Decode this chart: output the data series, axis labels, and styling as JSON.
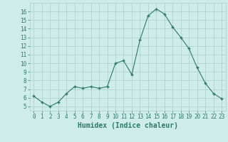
{
  "x": [
    0,
    1,
    2,
    3,
    4,
    5,
    6,
    7,
    8,
    9,
    10,
    11,
    12,
    13,
    14,
    15,
    16,
    17,
    18,
    19,
    20,
    21,
    22,
    23
  ],
  "y": [
    6.2,
    5.5,
    5.0,
    5.5,
    6.5,
    7.3,
    7.1,
    7.3,
    7.1,
    7.3,
    10.0,
    10.3,
    8.7,
    12.7,
    15.5,
    16.3,
    15.7,
    14.2,
    13.0,
    11.7,
    9.5,
    7.7,
    6.5,
    5.9
  ],
  "line_color": "#2d7a6a",
  "bg_color": "#cdecea",
  "grid_color": "#aacfcb",
  "xlabel": "Humidex (Indice chaleur)",
  "ylim": [
    4.5,
    17.0
  ],
  "xlim": [
    -0.5,
    23.5
  ],
  "yticks": [
    5,
    6,
    7,
    8,
    9,
    10,
    11,
    12,
    13,
    14,
    15,
    16
  ],
  "xticks": [
    0,
    1,
    2,
    3,
    4,
    5,
    6,
    7,
    8,
    9,
    10,
    11,
    12,
    13,
    14,
    15,
    16,
    17,
    18,
    19,
    20,
    21,
    22,
    23
  ],
  "font_color": "#2d7a6a",
  "label_fontsize": 7,
  "tick_fontsize": 5.5
}
